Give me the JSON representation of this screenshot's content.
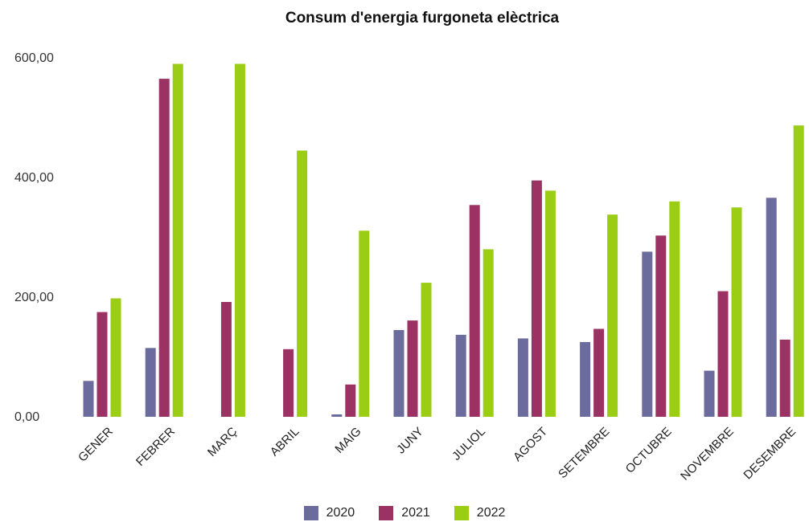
{
  "chart_data": {
    "type": "bar",
    "title": "Consum d'energia furgoneta elèctrica",
    "xlabel": "",
    "ylabel": "",
    "ylim": [
      0,
      600
    ],
    "yticks": [
      0,
      200,
      400,
      600
    ],
    "ytick_labels": [
      "0,00",
      "200,00",
      "400,00",
      "600,00"
    ],
    "grid": false,
    "legend_position": "bottom",
    "categories": [
      "GENER",
      "FEBRER",
      "MARÇ",
      "ABRIL",
      "MAIG",
      "JUNY",
      "JULIOL",
      "AGOST",
      "SETEMBRE",
      "OCTUBRE",
      "NOVEMBRE",
      "DESEMBRE"
    ],
    "series": [
      {
        "name": "2020",
        "color": "#6B6B9E",
        "values": [
          60,
          115,
          0,
          0,
          4,
          145,
          137,
          131,
          125,
          276,
          77,
          366
        ]
      },
      {
        "name": "2021",
        "color": "#9B3263",
        "values": [
          175,
          565,
          192,
          113,
          54,
          161,
          354,
          395,
          147,
          303,
          210,
          129
        ]
      },
      {
        "name": "2022",
        "color": "#9ACD14",
        "values": [
          198,
          590,
          590,
          445,
          311,
          224,
          280,
          378,
          338,
          360,
          350,
          487
        ]
      }
    ]
  }
}
